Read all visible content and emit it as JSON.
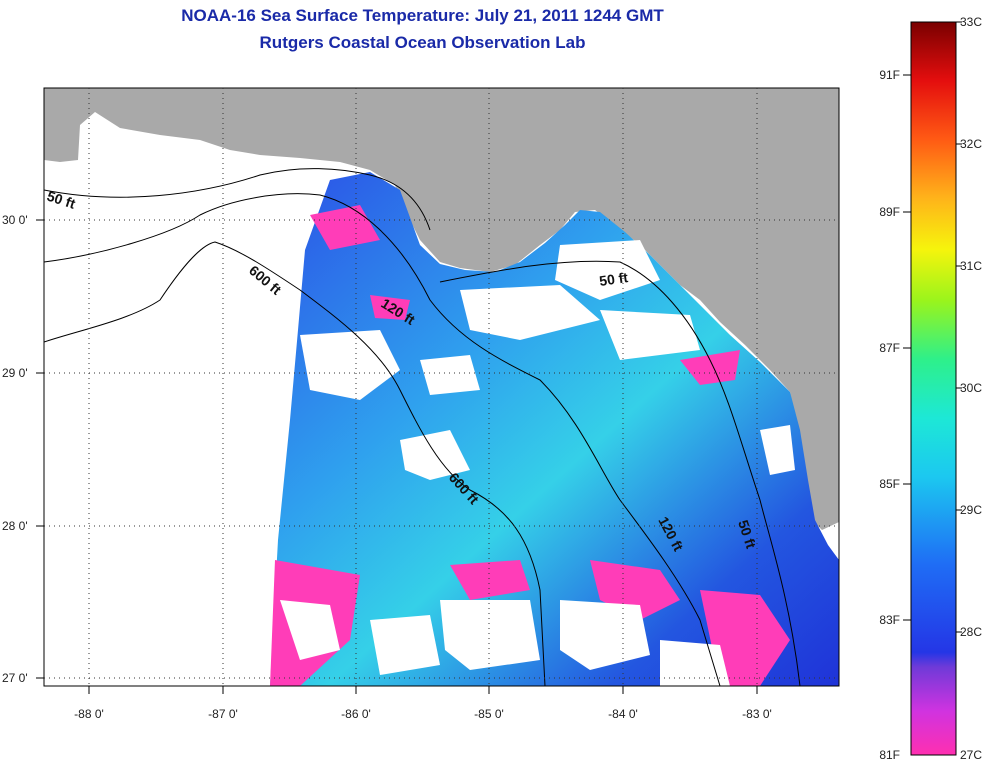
{
  "title": "NOAA-16 Sea Surface Temperature:  July 21, 2011 1244 GMT",
  "subtitle": "Rutgers Coastal Ocean Observation Lab",
  "map": {
    "lat_labels": [
      "30 0'",
      "29 0'",
      "28 0'",
      "27 0'"
    ],
    "lon_labels": [
      "-88 0'",
      "-87 0'",
      "-86 0'",
      "-85 0'",
      "-84 0'",
      "-83 0'"
    ],
    "lat_range": [
      26.97,
      30.9
    ],
    "lon_range": [
      -88.35,
      -82.4
    ],
    "isobath_labels": [
      "50 ft",
      "600 ft",
      "120 ft",
      "50 ft",
      "600 ft",
      "120 ft",
      "50 ft"
    ],
    "colors": {
      "land": "#a9a9a9",
      "no_data": "#ffffff",
      "isobath": "#000000"
    }
  },
  "colorbar": {
    "left_labels": [
      "91F",
      "89F",
      "87F",
      "85F",
      "83F",
      "81F"
    ],
    "right_labels": [
      "33C",
      "32C",
      "31C",
      "30C",
      "29C",
      "28C",
      "27C"
    ],
    "range_c": [
      27,
      33
    ]
  }
}
